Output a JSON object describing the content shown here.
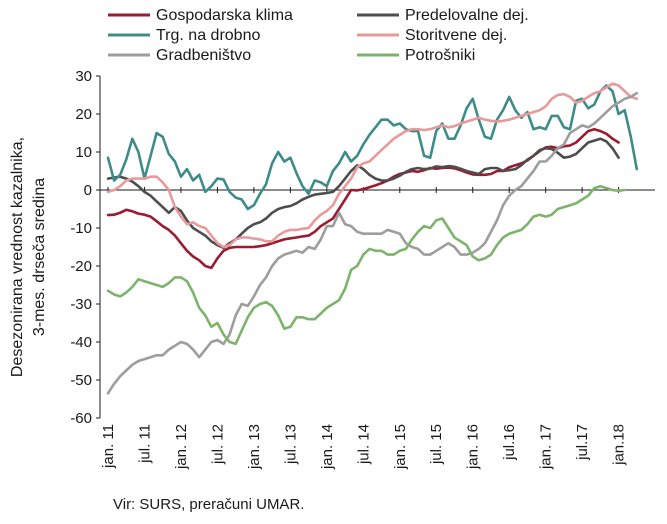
{
  "chart_data": {
    "type": "line",
    "xlabel": "",
    "ylabel": "Desezonirana vrednost kazalnika, 3-mes. drseča sredina",
    "ylabel_lines": [
      "Desezonirana vrednost kazalnika,",
      "3-mes. drseča sredina"
    ],
    "ylim": [
      -60,
      30
    ],
    "yticks": [
      30,
      20,
      10,
      0,
      -10,
      -20,
      -30,
      -40,
      -50,
      -60
    ],
    "ytick_labels": [
      "30",
      "20",
      "10",
      "0",
      "-10",
      "-20",
      "-30",
      "-40",
      "-50",
      "-60"
    ],
    "x_start": "2011-01",
    "x_end": "2018-06",
    "xticks": [
      "2011-01",
      "2011-07",
      "2012-01",
      "2012-07",
      "2013-01",
      "2013-07",
      "2014-01",
      "2014-07",
      "2015-01",
      "2015-07",
      "2016-01",
      "2016-07",
      "2017-01",
      "2017-07",
      "2018-01"
    ],
    "xtick_labels": [
      "jan. 11",
      "jul. 11",
      "jan. 12",
      "jul. 12",
      "jan. 13",
      "jul. 13",
      "jan. 14",
      "jul. 14",
      "jan. 15",
      "jul. 15",
      "jan. 16",
      "jul.16",
      "jan. 17",
      "jul.17",
      "jan.18"
    ],
    "grid": false,
    "legend_position": "top",
    "source": "Vir: SURS, preračuni UMAR.",
    "series": [
      {
        "name": "Gospodarska klima",
        "color": "#9b1b30",
        "values": [
          -6.6,
          -6.5,
          -6,
          -5.2,
          -5.6,
          -6.2,
          -6.5,
          -7,
          -8.2,
          -9.5,
          -10.5,
          -12,
          -14,
          -16,
          -17.5,
          -18.5,
          -20,
          -20.5,
          -18,
          -16,
          -15.2,
          -15,
          -15,
          -15,
          -15,
          -14.8,
          -14.5,
          -14,
          -13.5,
          -13,
          -12.7,
          -12.5,
          -12.2,
          -12,
          -11,
          -9.5,
          -8.5,
          -7.5,
          -5,
          -2.5,
          0,
          -0.1,
          0.2,
          0.7,
          1.2,
          1.8,
          2.5,
          3.5,
          4.2,
          4.6,
          5,
          4.8,
          5.2,
          5.8,
          5.6,
          5.8,
          5.9,
          5.7,
          5.2,
          4.6,
          4.1,
          4,
          4,
          4.2,
          5,
          5,
          6,
          6.5,
          7,
          7.8,
          9,
          10.2,
          11.2,
          11.4,
          11,
          11.5,
          11.7,
          12.5,
          14,
          15.5,
          16,
          15.5,
          14.8,
          13.5,
          12.5
        ]
      },
      {
        "name": "Predelovalne dej.",
        "color": "#4d4d4d",
        "values": [
          3,
          3.3,
          3.5,
          3,
          2.2,
          1,
          -0.5,
          -1.5,
          -3,
          -4.5,
          -6,
          -4.5,
          -5.5,
          -8,
          -10,
          -11,
          -12,
          -13.5,
          -14.5,
          -15.2,
          -14,
          -13,
          -11.5,
          -10,
          -9,
          -8.5,
          -7.5,
          -6,
          -5,
          -4.5,
          -4.2,
          -3.5,
          -2.5,
          -1.8,
          -1.2,
          -1,
          -0.8,
          -0.5,
          1,
          3,
          5,
          6.5,
          5.5,
          4,
          3,
          2.5,
          2.5,
          3,
          3.8,
          4.8,
          5.5,
          5.8,
          5.5,
          5.6,
          6.2,
          6,
          6.3,
          6.1,
          5.6,
          5,
          4.6,
          4.2,
          5.5,
          5.8,
          5.8,
          5,
          5.2,
          5.5,
          6.5,
          8,
          9,
          10.5,
          11,
          10.8,
          9.8,
          8.5,
          8.8,
          9.5,
          11,
          12.5,
          13,
          13.5,
          12.8,
          11,
          8.5
        ]
      },
      {
        "name": "Trg. na drobno",
        "color": "#3e8c8a",
        "values": [
          8.5,
          2.5,
          4,
          8,
          13.5,
          10,
          3,
          9,
          15,
          14,
          9.5,
          7.5,
          3.5,
          5.5,
          2.5,
          4,
          -0.5,
          1,
          3,
          2.8,
          -0.5,
          -2,
          -2.5,
          -5,
          -4,
          -1,
          1.5,
          7,
          10,
          7.5,
          8.5,
          4.5,
          1,
          -1,
          2.5,
          2,
          1,
          5,
          7,
          10,
          7.5,
          9,
          12,
          14.5,
          16.5,
          18.5,
          18.5,
          17,
          17.5,
          16,
          15.5,
          15.5,
          9,
          8.5,
          15.5,
          17.5,
          13.5,
          13.5,
          17,
          21.5,
          24,
          18.5,
          14,
          13.5,
          18.5,
          21,
          24.5,
          21,
          19,
          20.5,
          16,
          16.5,
          16,
          19.5,
          19.5,
          16.5,
          16,
          23.5,
          24,
          21.5,
          22.5,
          26,
          27.5,
          26,
          20,
          21,
          14,
          5.5
        ]
      },
      {
        "name": "Storitvene dej.",
        "color": "#e89a9a",
        "values": [
          -0.5,
          0,
          1,
          2.5,
          3,
          3,
          3,
          3.5,
          3.5,
          2,
          0,
          -4.5,
          -7,
          -9,
          -8.5,
          -9.5,
          -10,
          -12,
          -14,
          -15,
          -14.5,
          -13,
          -12.5,
          -12.5,
          -12.8,
          -13,
          -13.5,
          -13.5,
          -12,
          -11,
          -10.5,
          -10.5,
          -10.2,
          -10,
          -8,
          -6.5,
          -5.5,
          -4,
          -1,
          1,
          3,
          6,
          7,
          7.5,
          9,
          10.5,
          12,
          13.5,
          14.5,
          15.5,
          16,
          16,
          15.8,
          16,
          16.5,
          17,
          16.5,
          16.8,
          17.5,
          18,
          18.5,
          19,
          18.5,
          18.2,
          18,
          18.2,
          18.5,
          19,
          19.5,
          20,
          20.5,
          21,
          22,
          24,
          25,
          25.2,
          24.5,
          23,
          23.5,
          24.5,
          25.5,
          26,
          27,
          28,
          27.5,
          26,
          24.5,
          24
        ]
      },
      {
        "name": "Gradbeništvo",
        "color": "#9d9d9d",
        "values": [
          -53.5,
          -51,
          -49,
          -47.5,
          -46,
          -45,
          -44.5,
          -44,
          -43.5,
          -43.5,
          -42,
          -41,
          -40,
          -40.5,
          -42,
          -44,
          -42,
          -40,
          -39.5,
          -40.5,
          -38,
          -33,
          -30,
          -30.5,
          -28,
          -25,
          -23,
          -20,
          -18,
          -17,
          -16.5,
          -16,
          -16.5,
          -15,
          -15.5,
          -13,
          -9.5,
          -9.5,
          -6,
          -9,
          -9.5,
          -11,
          -11.5,
          -11.5,
          -11.5,
          -11.5,
          -10.5,
          -11,
          -11.5,
          -14,
          -15,
          -15.5,
          -17,
          -17,
          -16,
          -15,
          -14,
          -15,
          -17,
          -17,
          -16.5,
          -15.5,
          -14,
          -11,
          -8,
          -4,
          -1.5,
          0,
          1,
          3,
          5,
          7.5,
          7.5,
          9,
          11,
          12,
          15,
          16,
          17,
          16.5,
          17.5,
          19,
          20.5,
          22,
          23,
          24,
          24.5,
          25.5
        ]
      },
      {
        "name": "Potrošniki",
        "color": "#7db46c",
        "values": [
          -26.5,
          -27.5,
          -28,
          -27,
          -25.5,
          -23.5,
          -24,
          -24.5,
          -25,
          -25.5,
          -24.5,
          -23,
          -23,
          -24,
          -27,
          -31,
          -33,
          -36,
          -35,
          -38,
          -40,
          -40.5,
          -37,
          -33.5,
          -31,
          -30,
          -29.5,
          -30.5,
          -33,
          -36.5,
          -36,
          -33.5,
          -33.5,
          -34,
          -34,
          -32.5,
          -31,
          -30,
          -29,
          -26,
          -21,
          -20,
          -17,
          -15.5,
          -16,
          -16,
          -17,
          -17,
          -16,
          -15.5,
          -13,
          -11,
          -9.5,
          -10,
          -8,
          -7.5,
          -10,
          -12.5,
          -13.5,
          -14.5,
          -17.5,
          -18.5,
          -18,
          -17,
          -14.5,
          -12.5,
          -11.5,
          -11,
          -10.5,
          -9,
          -7,
          -6.5,
          -7,
          -6.5,
          -5,
          -4.5,
          -4,
          -3.5,
          -2.5,
          -1.5,
          0.5,
          1,
          0.5,
          0,
          -0.2,
          0
        ]
      }
    ]
  }
}
